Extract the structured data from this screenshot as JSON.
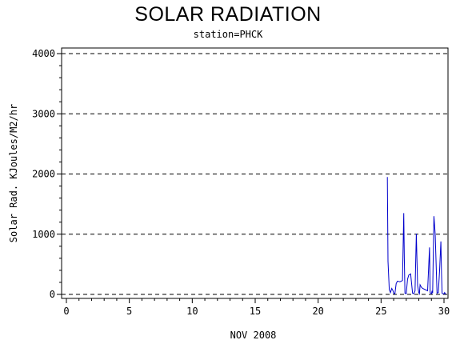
{
  "chart_data": {
    "type": "line",
    "title": "SOLAR RADIATION",
    "subtitle": "station=PHCK",
    "ylabel": "Solar Rad. KJoules/M2/hr",
    "xlabel": "NOV 2008",
    "xlim": [
      0,
      30.2
    ],
    "ylim": [
      0,
      4000
    ],
    "xticks": [
      0,
      5,
      10,
      15,
      20,
      25,
      30
    ],
    "yticks": [
      0,
      1000,
      2000,
      3000,
      4000
    ],
    "grid": "horizontal-dashed",
    "series_color": "#0000cc",
    "series": [
      {
        "x": [
          25.5,
          25.55,
          25.65,
          25.75,
          25.85,
          25.95,
          26.0,
          26.1,
          26.2,
          26.3,
          26.5,
          26.7,
          26.8,
          26.85,
          26.9,
          27.0,
          27.1,
          27.2,
          27.35,
          27.5,
          27.6,
          27.7,
          27.8,
          27.9,
          28.0,
          28.05,
          28.1,
          28.2,
          28.3,
          28.5,
          28.7,
          28.85,
          28.9,
          29.0,
          29.05,
          29.1,
          29.2,
          29.3,
          29.45,
          29.55,
          29.65,
          29.75,
          29.8,
          29.85,
          29.9,
          30.0,
          30.05,
          30.1,
          30.15
        ],
        "y": [
          1950,
          550,
          80,
          30,
          100,
          60,
          20,
          10,
          180,
          220,
          210,
          230,
          1350,
          600,
          20,
          10,
          250,
          320,
          340,
          20,
          10,
          60,
          1010,
          150,
          30,
          10,
          160,
          120,
          100,
          80,
          60,
          780,
          30,
          10,
          60,
          20,
          1300,
          1000,
          20,
          30,
          400,
          880,
          350,
          20,
          10,
          10,
          30,
          10,
          10
        ]
      }
    ]
  }
}
